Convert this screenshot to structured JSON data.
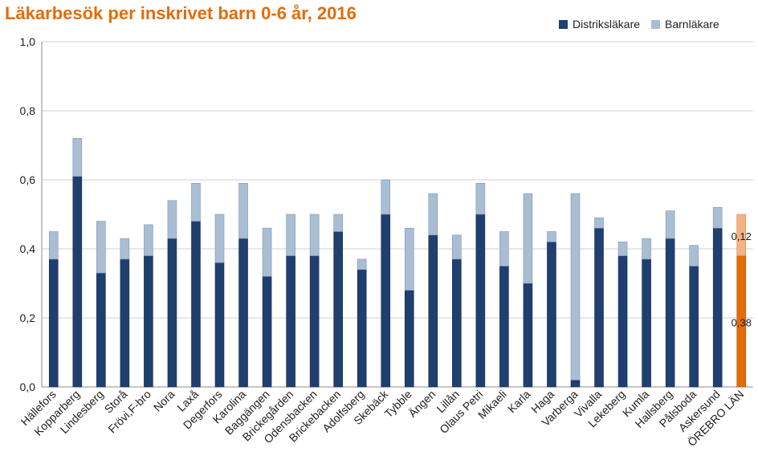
{
  "chart_data": {
    "type": "bar",
    "stacked": true,
    "title": "Läkarbesök per inskrivet barn 0-6 år, 2016",
    "xlabel": "",
    "ylabel": "",
    "ylim": [
      0,
      1.0
    ],
    "yticks": [
      "0,0",
      "0,2",
      "0,4",
      "0,6",
      "0,8",
      "1,0"
    ],
    "grid": true,
    "legend_position": "top-right",
    "categories": [
      "Hällefors",
      "Kopparberg",
      "Lindesberg",
      "Storå",
      "Frövi,F-bro",
      "Nora",
      "Laxå",
      "Degerfors",
      "Karolina",
      "Baggängen",
      "Brickegården",
      "Odensbacken",
      "Brickebacken",
      "Adolfsberg",
      "Skebäck",
      "Tybble",
      "Ängen",
      "Lillån",
      "Olaus Petri",
      "Mikaeli",
      "Karla",
      "Haga",
      "Varberga",
      "Vivalla",
      "Lekeberg",
      "Kumla",
      "Hallsberg",
      "Pålsboda",
      "Askersund",
      "ÖREBRO LÄN"
    ],
    "series": [
      {
        "name": "Distriksläkare",
        "color": "#1f3f6e",
        "values": [
          0.37,
          0.61,
          0.33,
          0.37,
          0.38,
          0.43,
          0.48,
          0.36,
          0.43,
          0.32,
          0.38,
          0.38,
          0.45,
          0.34,
          0.5,
          0.28,
          0.44,
          0.37,
          0.5,
          0.35,
          0.3,
          0.42,
          0.02,
          0.46,
          0.38,
          0.37,
          0.43,
          0.35,
          0.46,
          0.38
        ]
      },
      {
        "name": "Barnläkare",
        "color": "#a9bdd3",
        "values": [
          0.08,
          0.11,
          0.15,
          0.06,
          0.09,
          0.11,
          0.11,
          0.14,
          0.16,
          0.14,
          0.12,
          0.12,
          0.05,
          0.03,
          0.1,
          0.18,
          0.12,
          0.07,
          0.09,
          0.1,
          0.26,
          0.03,
          0.54,
          0.03,
          0.04,
          0.06,
          0.08,
          0.06,
          0.06,
          0.12
        ]
      }
    ],
    "highlight": {
      "category": "ÖREBRO LÄN",
      "color": "#e36c0a",
      "light_color": "#f4b183"
    },
    "data_labels": [
      {
        "category": "ÖREBRO LÄN",
        "series": "Distriksläkare",
        "text": "0,38"
      },
      {
        "category": "ÖREBRO LÄN",
        "series": "Barnläkare",
        "text": "0,12"
      }
    ]
  }
}
